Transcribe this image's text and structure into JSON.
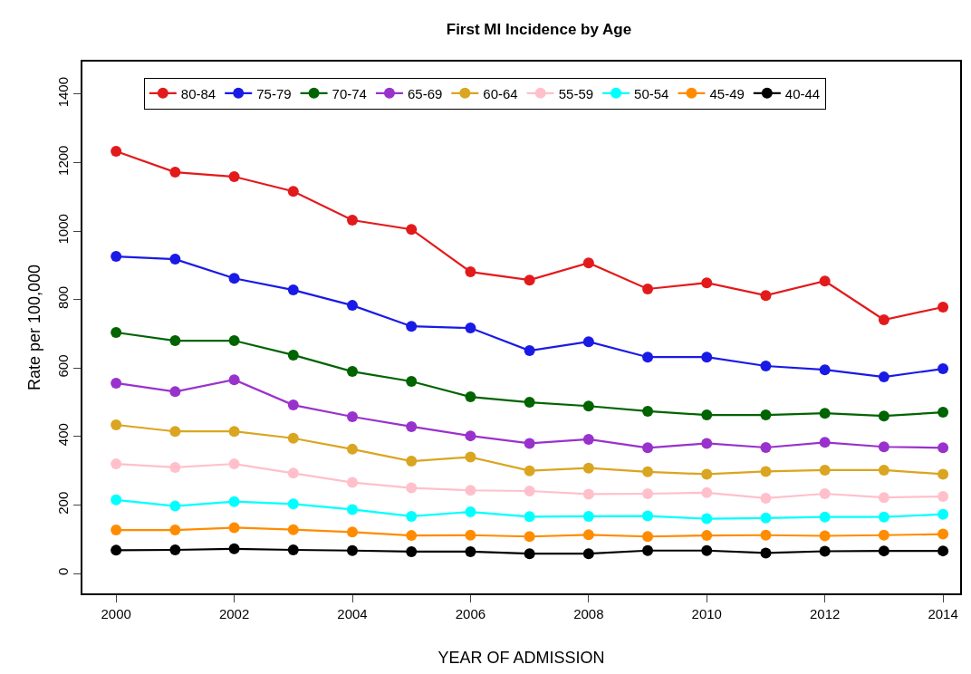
{
  "chart_data": {
    "type": "line",
    "title": "First MI Incidence by Age",
    "xlabel": "YEAR OF ADMISSION",
    "ylabel": "Rate per 100,000",
    "x": [
      2000,
      2001,
      2002,
      2003,
      2004,
      2005,
      2006,
      2007,
      2008,
      2009,
      2010,
      2011,
      2012,
      2013,
      2014
    ],
    "xlim": [
      1999.43,
      2014.29
    ],
    "xticks": [
      2000,
      2002,
      2004,
      2006,
      2008,
      2010,
      2012,
      2014
    ],
    "ylim": [
      -58,
      1495
    ],
    "yticks": [
      0,
      200,
      400,
      600,
      800,
      1000,
      1200,
      1400
    ],
    "grid": false,
    "legend": "top left",
    "marker": "circle",
    "line_style": "solid",
    "series": [
      {
        "name": "80-84",
        "color": "#e31a1c",
        "values": [
          1233,
          1172,
          1159,
          1116,
          1032,
          1005,
          881,
          857,
          907,
          831,
          849,
          812,
          854,
          741,
          778
        ]
      },
      {
        "name": "75-79",
        "color": "#1a1ae6",
        "values": [
          926,
          918,
          862,
          828,
          783,
          722,
          717,
          651,
          677,
          632,
          632,
          606,
          595,
          574,
          598
        ]
      },
      {
        "name": "70-74",
        "color": "#006400",
        "values": [
          704,
          680,
          680,
          638,
          590,
          561,
          516,
          500,
          489,
          474,
          463,
          463,
          468,
          460,
          471
        ]
      },
      {
        "name": "65-69",
        "color": "#9932cc",
        "values": [
          556,
          531,
          566,
          492,
          458,
          429,
          402,
          380,
          392,
          367,
          380,
          368,
          383,
          370,
          367
        ]
      },
      {
        "name": "60-64",
        "color": "#daa520",
        "values": [
          434,
          415,
          415,
          395,
          363,
          328,
          340,
          300,
          308,
          297,
          290,
          298,
          302,
          302,
          290
        ]
      },
      {
        "name": "55-59",
        "color": "#ffc0cb",
        "values": [
          320,
          310,
          320,
          293,
          266,
          250,
          243,
          241,
          232,
          233,
          236,
          220,
          233,
          222,
          225
        ]
      },
      {
        "name": "50-54",
        "color": "#00ffff",
        "values": [
          215,
          197,
          210,
          203,
          187,
          167,
          180,
          166,
          167,
          168,
          160,
          162,
          165,
          165,
          173
        ]
      },
      {
        "name": "45-49",
        "color": "#ff8c00",
        "values": [
          127,
          127,
          134,
          128,
          121,
          111,
          112,
          108,
          113,
          108,
          111,
          112,
          110,
          112,
          115
        ]
      },
      {
        "name": "40-44",
        "color": "#000000",
        "values": [
          68,
          69,
          72,
          69,
          67,
          64,
          64,
          58,
          58,
          67,
          67,
          60,
          65,
          66,
          66
        ]
      }
    ]
  }
}
